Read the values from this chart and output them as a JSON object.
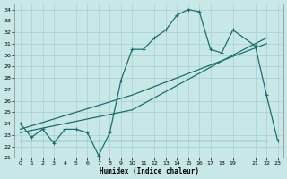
{
  "xlabel": "Humidex (Indice chaleur)",
  "bg_color": "#c8e8e8",
  "line_color": "#1a6e6e",
  "ylim": [
    21,
    34.5
  ],
  "xlim": [
    -0.5,
    23.5
  ],
  "yticks": [
    21,
    22,
    23,
    24,
    25,
    26,
    27,
    28,
    29,
    30,
    31,
    32,
    33,
    34
  ],
  "xticks": [
    0,
    1,
    2,
    3,
    4,
    5,
    6,
    7,
    8,
    9,
    10,
    11,
    12,
    13,
    14,
    15,
    16,
    17,
    18,
    19,
    21,
    22,
    23
  ],
  "xticklabels": [
    "0",
    "1",
    "2",
    "3",
    "4",
    "5",
    "6",
    "7",
    "8",
    "9",
    "10",
    "11",
    "12",
    "13",
    "14",
    "15",
    "16",
    "17",
    "18",
    "19",
    "21",
    "22",
    "23"
  ],
  "line1_x": [
    0,
    1,
    2,
    3,
    4,
    5,
    6,
    7,
    8,
    9,
    10,
    11,
    12,
    13,
    14,
    15,
    16,
    17,
    18,
    19,
    21,
    22,
    23
  ],
  "line1_y": [
    24,
    22.8,
    23.5,
    22.3,
    23.5,
    23.5,
    23.2,
    21.2,
    23.2,
    27.8,
    30.5,
    30.5,
    31.5,
    32.2,
    33.5,
    34.0,
    33.8,
    30.5,
    30.2,
    32.2,
    30.8,
    26.5,
    22.5
  ],
  "line2_x": [
    0,
    10,
    22
  ],
  "line2_y": [
    23.5,
    26.5,
    31.0
  ],
  "line3_x": [
    0,
    10,
    19,
    22
  ],
  "line3_y": [
    23.2,
    25.2,
    30.0,
    31.5
  ],
  "line4_x": [
    0,
    10,
    22
  ],
  "line4_y": [
    22.5,
    22.5,
    22.5
  ],
  "marker": "+"
}
